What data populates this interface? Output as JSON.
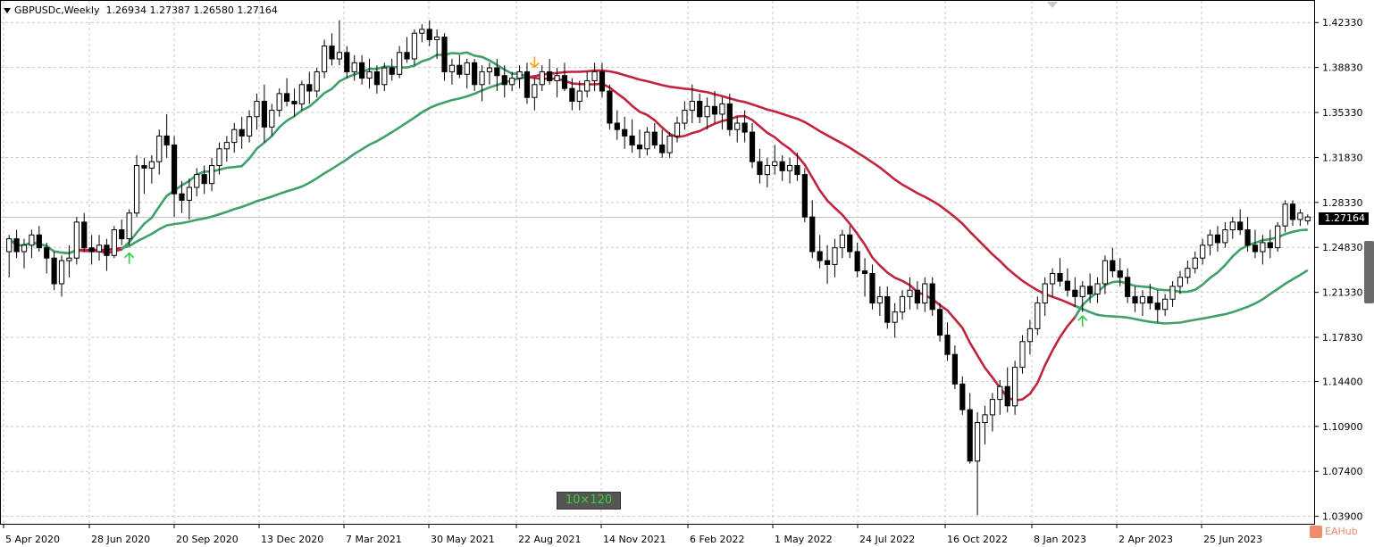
{
  "header": {
    "symbol": "GBPUSDc,Weekly",
    "ohlc": "1.26934 1.27387 1.26580 1.27164"
  },
  "current_price_label": "1.27164",
  "badge_label": "10×120",
  "watermark": "EAHub",
  "colors": {
    "fast_green": "#3fa06a",
    "slow_green": "#3fa06a",
    "fast_red": "#c0243f",
    "slow_red": "#c0243f",
    "arrow_up": "#2ecc40",
    "arrow_down": "#f0a000",
    "bull_fill": "#ffffff",
    "bear_fill": "#000000"
  },
  "chart_data": {
    "type": "candlestick",
    "y_ticks": [
      "1.42330",
      "1.38830",
      "1.35330",
      "1.31830",
      "1.28330",
      "1.24830",
      "1.21330",
      "1.17830",
      "1.14400",
      "1.10900",
      "1.07400",
      "1.03900"
    ],
    "ylim": [
      1.0325,
      1.4325
    ],
    "x_ticks": [
      "5 Apr 2020",
      "28 Jun 2020",
      "20 Sep 2020",
      "13 Dec 2020",
      "7 Mar 2021",
      "30 May 2021",
      "22 Aug 2021",
      "14 Nov 2021",
      "6 Feb 2022",
      "1 May 2022",
      "24 Jul 2022",
      "16 Oct 2022",
      "8 Jan 2023",
      "2 Apr 2023",
      "25 Jun 2023"
    ],
    "current_price": 1.27164,
    "candles": [
      [
        1.245,
        1.258,
        1.225,
        1.255
      ],
      [
        1.255,
        1.262,
        1.24,
        1.245
      ],
      [
        1.245,
        1.255,
        1.232,
        1.25
      ],
      [
        1.25,
        1.262,
        1.24,
        1.258
      ],
      [
        1.258,
        1.265,
        1.245,
        1.248
      ],
      [
        1.248,
        1.252,
        1.228,
        1.24
      ],
      [
        1.24,
        1.245,
        1.215,
        1.22
      ],
      [
        1.22,
        1.242,
        1.21,
        1.238
      ],
      [
        1.238,
        1.25,
        1.225,
        1.24
      ],
      [
        1.24,
        1.272,
        1.235,
        1.268
      ],
      [
        1.268,
        1.275,
        1.245,
        1.248
      ],
      [
        1.248,
        1.258,
        1.235,
        1.245
      ],
      [
        1.245,
        1.258,
        1.238,
        1.25
      ],
      [
        1.25,
        1.255,
        1.23,
        1.242
      ],
      [
        1.242,
        1.265,
        1.24,
        1.262
      ],
      [
        1.262,
        1.27,
        1.25,
        1.255
      ],
      [
        1.255,
        1.278,
        1.25,
        1.275
      ],
      [
        1.275,
        1.32,
        1.272,
        1.312
      ],
      [
        1.312,
        1.318,
        1.29,
        1.31
      ],
      [
        1.31,
        1.32,
        1.298,
        1.315
      ],
      [
        1.315,
        1.34,
        1.305,
        1.335
      ],
      [
        1.335,
        1.352,
        1.318,
        1.328
      ],
      [
        1.328,
        1.335,
        1.272,
        1.29
      ],
      [
        1.29,
        1.3,
        1.275,
        1.285
      ],
      [
        1.285,
        1.302,
        1.27,
        1.295
      ],
      [
        1.295,
        1.31,
        1.288,
        1.305
      ],
      [
        1.305,
        1.312,
        1.29,
        1.298
      ],
      [
        1.298,
        1.318,
        1.292,
        1.312
      ],
      [
        1.312,
        1.33,
        1.305,
        1.325
      ],
      [
        1.325,
        1.335,
        1.315,
        1.33
      ],
      [
        1.33,
        1.345,
        1.322,
        1.34
      ],
      [
        1.34,
        1.35,
        1.325,
        1.335
      ],
      [
        1.335,
        1.355,
        1.33,
        1.35
      ],
      [
        1.35,
        1.368,
        1.34,
        1.362
      ],
      [
        1.362,
        1.375,
        1.33,
        1.342
      ],
      [
        1.342,
        1.36,
        1.335,
        1.355
      ],
      [
        1.355,
        1.372,
        1.35,
        1.368
      ],
      [
        1.368,
        1.38,
        1.358,
        1.362
      ],
      [
        1.362,
        1.372,
        1.35,
        1.36
      ],
      [
        1.36,
        1.378,
        1.355,
        1.375
      ],
      [
        1.375,
        1.385,
        1.36,
        1.37
      ],
      [
        1.37,
        1.388,
        1.365,
        1.385
      ],
      [
        1.385,
        1.41,
        1.38,
        1.405
      ],
      [
        1.405,
        1.415,
        1.39,
        1.395
      ],
      [
        1.395,
        1.425,
        1.39,
        1.4
      ],
      [
        1.4,
        1.405,
        1.38,
        1.385
      ],
      [
        1.385,
        1.398,
        1.378,
        1.392
      ],
      [
        1.392,
        1.398,
        1.375,
        1.38
      ],
      [
        1.38,
        1.395,
        1.372,
        1.385
      ],
      [
        1.385,
        1.39,
        1.368,
        1.375
      ],
      [
        1.375,
        1.392,
        1.37,
        1.388
      ],
      [
        1.388,
        1.395,
        1.378,
        1.383
      ],
      [
        1.383,
        1.405,
        1.38,
        1.4
      ],
      [
        1.4,
        1.412,
        1.392,
        1.395
      ],
      [
        1.395,
        1.418,
        1.39,
        1.415
      ],
      [
        1.415,
        1.422,
        1.408,
        1.418
      ],
      [
        1.418,
        1.425,
        1.405,
        1.41
      ],
      [
        1.41,
        1.418,
        1.395,
        1.412
      ],
      [
        1.412,
        1.415,
        1.378,
        1.385
      ],
      [
        1.385,
        1.395,
        1.375,
        1.39
      ],
      [
        1.39,
        1.398,
        1.38,
        1.383
      ],
      [
        1.383,
        1.395,
        1.372,
        1.392
      ],
      [
        1.392,
        1.395,
        1.37,
        1.375
      ],
      [
        1.375,
        1.39,
        1.362,
        1.385
      ],
      [
        1.385,
        1.392,
        1.375,
        1.388
      ],
      [
        1.388,
        1.395,
        1.37,
        1.382
      ],
      [
        1.382,
        1.39,
        1.365,
        1.375
      ],
      [
        1.375,
        1.385,
        1.37,
        1.38
      ],
      [
        1.38,
        1.39,
        1.372,
        1.385
      ],
      [
        1.385,
        1.392,
        1.36,
        1.365
      ],
      [
        1.365,
        1.38,
        1.355,
        1.375
      ],
      [
        1.375,
        1.39,
        1.37,
        1.385
      ],
      [
        1.385,
        1.395,
        1.375,
        1.378
      ],
      [
        1.378,
        1.388,
        1.365,
        1.382
      ],
      [
        1.382,
        1.392,
        1.37,
        1.372
      ],
      [
        1.372,
        1.38,
        1.355,
        1.362
      ],
      [
        1.362,
        1.378,
        1.355,
        1.37
      ],
      [
        1.37,
        1.385,
        1.365,
        1.378
      ],
      [
        1.378,
        1.392,
        1.37,
        1.385
      ],
      [
        1.385,
        1.392,
        1.365,
        1.37
      ],
      [
        1.37,
        1.375,
        1.34,
        1.345
      ],
      [
        1.345,
        1.355,
        1.332,
        1.34
      ],
      [
        1.34,
        1.35,
        1.325,
        1.335
      ],
      [
        1.335,
        1.348,
        1.322,
        1.328
      ],
      [
        1.328,
        1.34,
        1.318,
        1.325
      ],
      [
        1.325,
        1.342,
        1.32,
        1.338
      ],
      [
        1.338,
        1.345,
        1.325,
        1.328
      ],
      [
        1.328,
        1.34,
        1.318,
        1.322
      ],
      [
        1.322,
        1.338,
        1.318,
        1.335
      ],
      [
        1.335,
        1.35,
        1.33,
        1.345
      ],
      [
        1.345,
        1.362,
        1.34,
        1.355
      ],
      [
        1.355,
        1.375,
        1.345,
        1.362
      ],
      [
        1.362,
        1.368,
        1.345,
        1.35
      ],
      [
        1.35,
        1.365,
        1.34,
        1.358
      ],
      [
        1.358,
        1.37,
        1.345,
        1.352
      ],
      [
        1.352,
        1.365,
        1.34,
        1.36
      ],
      [
        1.36,
        1.368,
        1.335,
        1.34
      ],
      [
        1.34,
        1.35,
        1.33,
        1.345
      ],
      [
        1.345,
        1.355,
        1.33,
        1.338
      ],
      [
        1.338,
        1.345,
        1.31,
        1.315
      ],
      [
        1.315,
        1.325,
        1.298,
        1.305
      ],
      [
        1.305,
        1.318,
        1.295,
        1.312
      ],
      [
        1.312,
        1.328,
        1.305,
        1.315
      ],
      [
        1.315,
        1.32,
        1.3,
        1.308
      ],
      [
        1.308,
        1.318,
        1.298,
        1.312
      ],
      [
        1.312,
        1.322,
        1.3,
        1.305
      ],
      [
        1.305,
        1.31,
        1.268,
        1.272
      ],
      [
        1.272,
        1.285,
        1.24,
        1.245
      ],
      [
        1.245,
        1.258,
        1.232,
        1.238
      ],
      [
        1.238,
        1.25,
        1.22,
        1.235
      ],
      [
        1.235,
        1.255,
        1.225,
        1.248
      ],
      [
        1.248,
        1.262,
        1.24,
        1.258
      ],
      [
        1.258,
        1.265,
        1.24,
        1.245
      ],
      [
        1.245,
        1.252,
        1.225,
        1.23
      ],
      [
        1.23,
        1.24,
        1.21,
        1.228
      ],
      [
        1.228,
        1.235,
        1.2,
        1.205
      ],
      [
        1.205,
        1.218,
        1.195,
        1.21
      ],
      [
        1.21,
        1.218,
        1.185,
        1.19
      ],
      [
        1.19,
        1.205,
        1.178,
        1.198
      ],
      [
        1.198,
        1.215,
        1.192,
        1.21
      ],
      [
        1.21,
        1.225,
        1.2,
        1.215
      ],
      [
        1.215,
        1.222,
        1.2,
        1.205
      ],
      [
        1.205,
        1.225,
        1.198,
        1.22
      ],
      [
        1.22,
        1.225,
        1.195,
        1.2
      ],
      [
        1.2,
        1.205,
        1.175,
        1.18
      ],
      [
        1.18,
        1.19,
        1.16,
        1.165
      ],
      [
        1.165,
        1.172,
        1.138,
        1.142
      ],
      [
        1.142,
        1.148,
        1.118,
        1.122
      ],
      [
        1.122,
        1.135,
        1.08,
        1.082
      ],
      [
        1.082,
        1.12,
        1.04,
        1.112
      ],
      [
        1.112,
        1.125,
        1.095,
        1.118
      ],
      [
        1.118,
        1.135,
        1.105,
        1.13
      ],
      [
        1.13,
        1.145,
        1.118,
        1.14
      ],
      [
        1.14,
        1.155,
        1.12,
        1.125
      ],
      [
        1.125,
        1.16,
        1.118,
        1.155
      ],
      [
        1.155,
        1.18,
        1.15,
        1.175
      ],
      [
        1.175,
        1.192,
        1.165,
        1.185
      ],
      [
        1.185,
        1.21,
        1.18,
        1.205
      ],
      [
        1.205,
        1.225,
        1.195,
        1.22
      ],
      [
        1.22,
        1.232,
        1.21,
        1.228
      ],
      [
        1.228,
        1.24,
        1.218,
        1.222
      ],
      [
        1.222,
        1.232,
        1.21,
        1.215
      ],
      [
        1.215,
        1.225,
        1.202,
        1.21
      ],
      [
        1.21,
        1.222,
        1.198,
        1.218
      ],
      [
        1.218,
        1.228,
        1.205,
        1.212
      ],
      [
        1.212,
        1.225,
        1.205,
        1.22
      ],
      [
        1.22,
        1.242,
        1.212,
        1.238
      ],
      [
        1.238,
        1.248,
        1.225,
        1.23
      ],
      [
        1.23,
        1.24,
        1.218,
        1.225
      ],
      [
        1.225,
        1.232,
        1.205,
        1.21
      ],
      [
        1.21,
        1.218,
        1.198,
        1.205
      ],
      [
        1.205,
        1.215,
        1.195,
        1.21
      ],
      [
        1.21,
        1.22,
        1.2,
        1.205
      ],
      [
        1.205,
        1.215,
        1.19,
        1.2
      ],
      [
        1.2,
        1.212,
        1.195,
        1.208
      ],
      [
        1.208,
        1.222,
        1.202,
        1.218
      ],
      [
        1.218,
        1.23,
        1.212,
        1.225
      ],
      [
        1.225,
        1.238,
        1.22,
        1.232
      ],
      [
        1.232,
        1.245,
        1.228,
        1.24
      ],
      [
        1.24,
        1.255,
        1.235,
        1.25
      ],
      [
        1.25,
        1.262,
        1.242,
        1.258
      ],
      [
        1.258,
        1.265,
        1.245,
        1.252
      ],
      [
        1.252,
        1.268,
        1.248,
        1.262
      ],
      [
        1.262,
        1.272,
        1.255,
        1.268
      ],
      [
        1.268,
        1.278,
        1.258,
        1.262
      ],
      [
        1.262,
        1.272,
        1.245,
        1.25
      ],
      [
        1.25,
        1.262,
        1.24,
        1.245
      ],
      [
        1.245,
        1.258,
        1.235,
        1.252
      ],
      [
        1.252,
        1.262,
        1.24,
        1.248
      ],
      [
        1.248,
        1.268,
        1.245,
        1.265
      ],
      [
        1.265,
        1.285,
        1.26,
        1.282
      ],
      [
        1.282,
        1.285,
        1.265,
        1.27
      ],
      [
        1.27,
        1.278,
        1.265,
        1.275
      ],
      [
        1.269,
        1.274,
        1.266,
        1.272
      ]
    ]
  }
}
